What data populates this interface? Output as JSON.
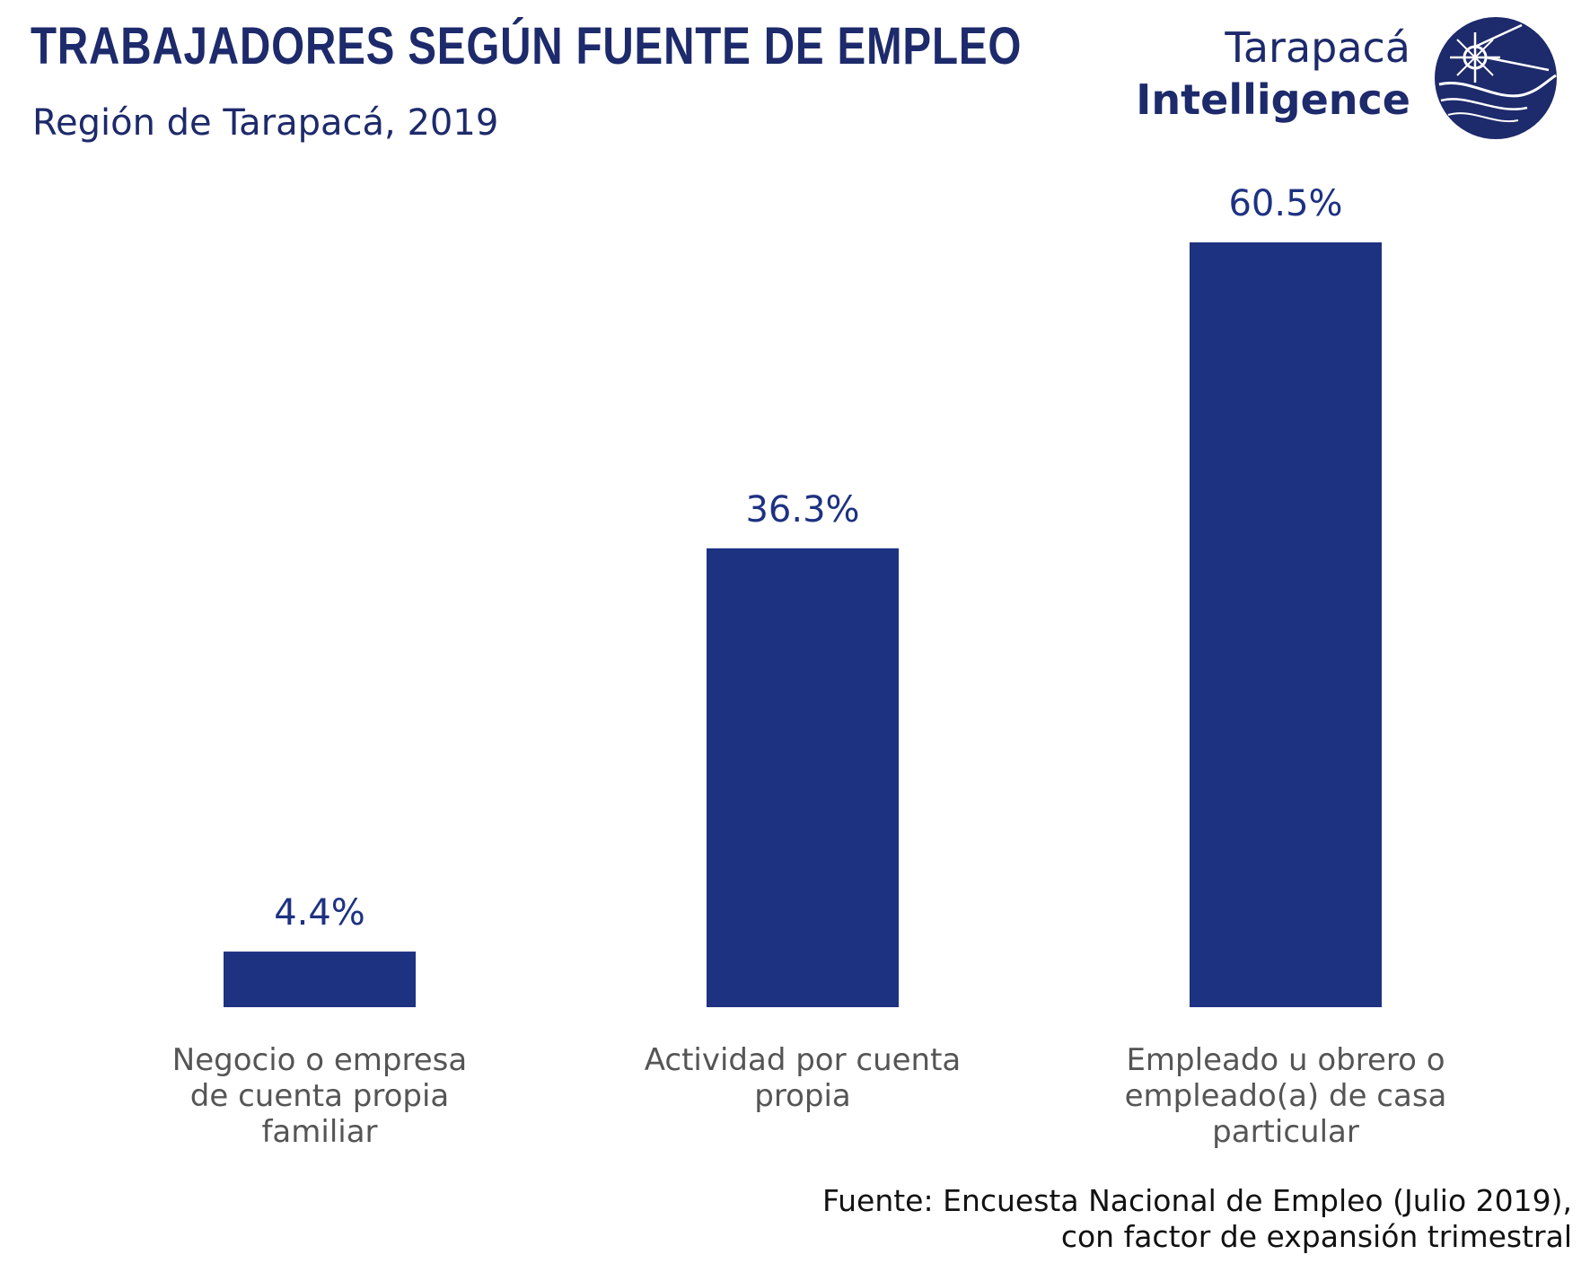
{
  "header": {
    "title": "TRABAJADORES SEGÚN FUENTE DE EMPLEO",
    "subtitle": "Región de Tarapacá, 2019"
  },
  "logo": {
    "line1": "Tarapacá",
    "line2": "Intelligence"
  },
  "colors": {
    "bar": "#1e3282",
    "label": "#1e3282",
    "category": "#555555"
  },
  "chart_data": {
    "type": "bar",
    "title": "TRABAJADORES SEGÚN FUENTE DE EMPLEO",
    "subtitle": "Región de Tarapacá, 2019",
    "categories": [
      "Negocio o empresa de cuenta propia familiar",
      "Actividad por cuenta propia",
      "Empleado u obrero o empleado(a) de casa particular"
    ],
    "category_lines": [
      [
        "Negocio o empresa",
        "de cuenta propia",
        "familiar"
      ],
      [
        "Actividad por cuenta",
        "propia"
      ],
      [
        "Empleado u obrero o",
        "empleado(a) de casa",
        "particular"
      ]
    ],
    "values": [
      4.4,
      36.3,
      60.5
    ],
    "data_labels": [
      "4.4%",
      "36.3%",
      "60.5%"
    ],
    "xlabel": "",
    "ylabel": "",
    "ylim": [
      0,
      60.5
    ],
    "grid": false,
    "legend": "none"
  },
  "footer": {
    "source_line1": "Fuente: Encuesta Nacional de Empleo (Julio 2019),",
    "source_line2": "con factor de expansión trimestral"
  }
}
